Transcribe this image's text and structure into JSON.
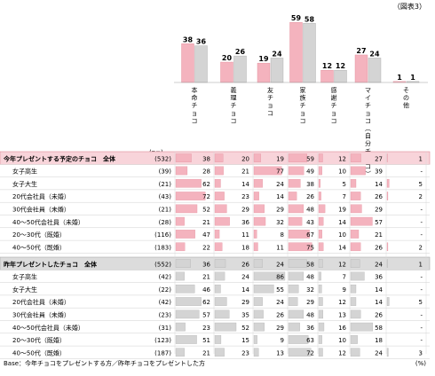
{
  "chart_data": {
    "type": "bar",
    "figure_label": "（図表3）",
    "unit_label": "(%)",
    "n_header": "(n=)",
    "base_note": "Base：今年チョコをプレゼントする方／昨年チョコをプレゼントした方",
    "categories": [
      "本命チョコ",
      "義理チョコ",
      "友チョコ",
      "家族チョコ",
      "感謝チョコ",
      "マイチョコ（自分チョコ）",
      "その他"
    ],
    "category_labels": [
      [
        "本",
        "命",
        "チ",
        "ョ",
        "コ"
      ],
      [
        "義",
        "理",
        "チ",
        "ョ",
        "コ"
      ],
      [
        "友",
        "チ",
        "ョ",
        "コ"
      ],
      [
        "家",
        "族",
        "チ",
        "ョ",
        "コ"
      ],
      [
        "感",
        "謝",
        "チ",
        "ョ",
        "コ"
      ],
      [
        "マ",
        "イ",
        "チ",
        "ョ",
        "コ",
        "︵",
        "自",
        "分",
        "チ",
        "ョ",
        "コ",
        "︶"
      ],
      [
        "そ",
        "の",
        "他"
      ]
    ],
    "series": [
      {
        "name": "今年プレゼントする予定のチョコ 全体",
        "values": [
          38,
          20,
          19,
          59,
          12,
          27,
          1
        ]
      },
      {
        "name": "昨年プレゼントしたチョコ 全体",
        "values": [
          36,
          26,
          24,
          58,
          12,
          24,
          1
        ]
      }
    ],
    "ylim": [
      0,
      65
    ],
    "colors": {
      "pink": "#f4b3be",
      "gray": "#d4d4d4",
      "header_pink": "#f8d4da",
      "header_gray": "#dcdcdc",
      "pink_border": "#e08a98",
      "gray_border": "#a9a9a9"
    },
    "table_sections": [
      {
        "title": "今年プレゼントする予定のチョコ　全体",
        "n": "(532)",
        "color": "pink",
        "values": [
          38,
          20,
          19,
          59,
          12,
          27,
          1
        ],
        "display": [
          "38",
          "20",
          "19",
          "59",
          "12",
          "27",
          "1"
        ],
        "rows": [
          {
            "label": "女子高生",
            "n": "(39)",
            "values": [
              28,
              21,
              77,
              49,
              10,
              39,
              0
            ],
            "display": [
              "28",
              "21",
              "77",
              "49",
              "10",
              "39",
              "-"
            ]
          },
          {
            "label": "女子大生",
            "n": "(21)",
            "values": [
              62,
              14,
              24,
              38,
              5,
              14,
              5
            ],
            "display": [
              "62",
              "14",
              "24",
              "38",
              "5",
              "14",
              "5"
            ]
          },
          {
            "label": "20代会社員（未婚）",
            "n": "(43)",
            "values": [
              72,
              23,
              14,
              26,
              7,
              26,
              2
            ],
            "display": [
              "72",
              "23",
              "14",
              "26",
              "7",
              "26",
              "2"
            ]
          },
          {
            "label": "30代会社員（未婚）",
            "n": "(21)",
            "values": [
              52,
              29,
              29,
              48,
              19,
              29,
              0
            ],
            "display": [
              "52",
              "29",
              "29",
              "48",
              "19",
              "29",
              "-"
            ]
          },
          {
            "label": "40～50代会社員（未婚）",
            "n": "(28)",
            "values": [
              21,
              36,
              32,
              43,
              14,
              57,
              0
            ],
            "display": [
              "21",
              "36",
              "32",
              "43",
              "14",
              "57",
              "-"
            ]
          },
          {
            "label": "20～30代（既婚）",
            "n": "(116)",
            "values": [
              47,
              11,
              8,
              67,
              10,
              21,
              0
            ],
            "display": [
              "47",
              "11",
              "8",
              "67",
              "10",
              "21",
              "-"
            ]
          },
          {
            "label": "40～50代（既婚）",
            "n": "(183)",
            "values": [
              22,
              18,
              11,
              75,
              14,
              26,
              2
            ],
            "display": [
              "22",
              "18",
              "11",
              "75",
              "14",
              "26",
              "2"
            ]
          }
        ]
      },
      {
        "title": "昨年プレゼントしたチョコ　全体",
        "n": "(552)",
        "color": "gray",
        "values": [
          36,
          26,
          24,
          58,
          12,
          24,
          1
        ],
        "display": [
          "36",
          "26",
          "24",
          "58",
          "12",
          "24",
          "1"
        ],
        "rows": [
          {
            "label": "女子高生",
            "n": "(42)",
            "values": [
              21,
              24,
              86,
              48,
              7,
              36,
              0
            ],
            "display": [
              "21",
              "24",
              "86",
              "48",
              "7",
              "36",
              "-"
            ]
          },
          {
            "label": "女子大生",
            "n": "(22)",
            "values": [
              46,
              14,
              55,
              32,
              9,
              14,
              0
            ],
            "display": [
              "46",
              "14",
              "55",
              "32",
              "9",
              "14",
              "-"
            ]
          },
          {
            "label": "20代会社員（未婚）",
            "n": "(42)",
            "values": [
              62,
              29,
              24,
              29,
              12,
              14,
              5
            ],
            "display": [
              "62",
              "29",
              "24",
              "29",
              "12",
              "14",
              "5"
            ]
          },
          {
            "label": "30代会社員（未婚）",
            "n": "(23)",
            "values": [
              57,
              35,
              26,
              48,
              13,
              26,
              0
            ],
            "display": [
              "57",
              "35",
              "26",
              "48",
              "13",
              "26",
              "-"
            ]
          },
          {
            "label": "40～50代会社員（未婚）",
            "n": "(31)",
            "values": [
              23,
              52,
              29,
              36,
              16,
              58,
              0
            ],
            "display": [
              "23",
              "52",
              "29",
              "36",
              "16",
              "58",
              "-"
            ]
          },
          {
            "label": "20～30代（既婚）",
            "n": "(123)",
            "values": [
              51,
              15,
              9,
              63,
              10,
              18,
              0
            ],
            "display": [
              "51",
              "15",
              "9",
              "63",
              "10",
              "18",
              "-"
            ]
          },
          {
            "label": "40～50代（既婚）",
            "n": "(187)",
            "values": [
              21,
              23,
              13,
              72,
              12,
              24,
              3
            ],
            "display": [
              "21",
              "23",
              "13",
              "72",
              "12",
              "24",
              "3"
            ]
          }
        ]
      }
    ]
  }
}
